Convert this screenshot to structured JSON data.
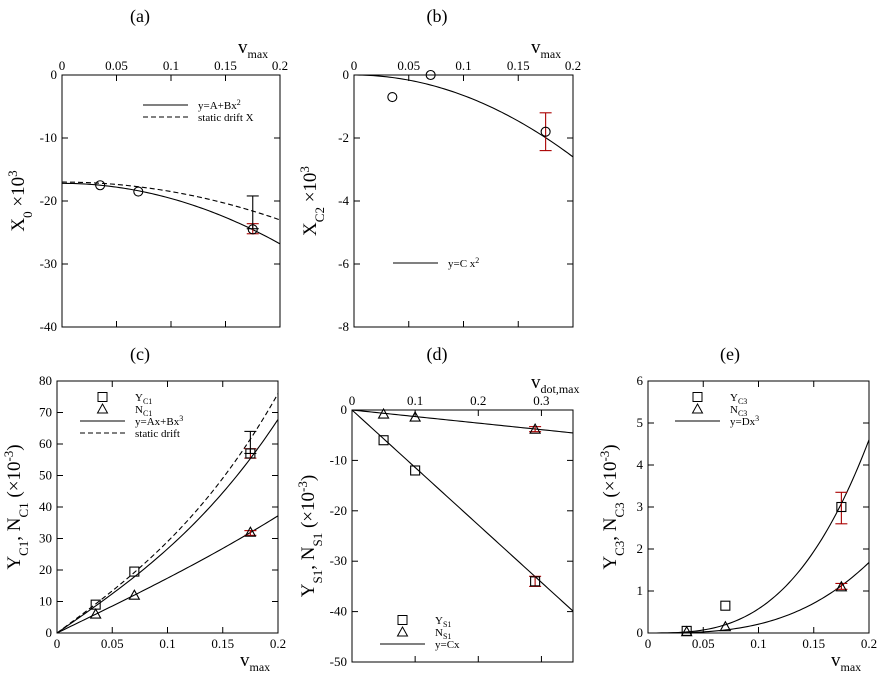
{
  "chart_data": [
    {
      "id": "a",
      "panel_label": "(a)",
      "type": "scatter",
      "xlabel_main": "v",
      "xlabel_sub": "max",
      "xaxis_position": "top",
      "ylabel_html": "X<tspan baseline-shift='sub' font-size='13'>0</tspan> ×10<tspan baseline-shift='super' font-size='13'>3</tspan>",
      "xlim": [
        0,
        0.2
      ],
      "ylim": [
        -40,
        0
      ],
      "xticks": [
        0,
        0.05,
        0.1,
        0.15,
        0.2
      ],
      "xtick_labels": [
        "0",
        "0.05",
        "0.1",
        "0.15",
        "0.2"
      ],
      "yticks": [
        0,
        -10,
        -20,
        -30,
        -40
      ],
      "ytick_labels": [
        "0",
        "-10",
        "-20",
        "-30",
        "-40"
      ],
      "points": [
        {
          "marker": "circle",
          "color": "#000000",
          "x": [
            0.035,
            0.07
          ],
          "y": [
            -17.5,
            -18.5
          ]
        },
        {
          "marker": "circle",
          "color": "#aa0000",
          "x": [
            0.175
          ],
          "y": [
            -24.5
          ]
        }
      ],
      "errorbars": [
        {
          "x": 0.175,
          "y": -24.4,
          "lo": -25.2,
          "hi": -23.6,
          "color": "#aa0000"
        },
        {
          "x": 0.175,
          "y": -24.4,
          "lo": -24.4,
          "hi": -19.2,
          "color": "#000000"
        }
      ],
      "curves": [
        {
          "kind": "poly",
          "coef": [
            -17.2,
            0,
            -240
          ],
          "xr": [
            0,
            0.2
          ],
          "dash": false
        },
        {
          "kind": "poly",
          "coef": [
            -17,
            0,
            -150
          ],
          "xr": [
            0,
            0.2
          ],
          "dash": true
        }
      ],
      "legend": [
        {
          "style": "line",
          "text": "y=A+Bx",
          "sup": "2"
        },
        {
          "style": "dash",
          "text": "static drift X"
        }
      ]
    },
    {
      "id": "b",
      "panel_label": "(b)",
      "type": "scatter",
      "xlabel_main": "v",
      "xlabel_sub": "max",
      "xaxis_position": "top",
      "ylabel_html": "X<tspan baseline-shift='sub' font-size='13'>C2</tspan> ×10<tspan baseline-shift='super' font-size='13'>3</tspan>",
      "xlim": [
        0,
        0.2
      ],
      "ylim": [
        -8,
        0
      ],
      "xticks": [
        0,
        0.05,
        0.1,
        0.15,
        0.2
      ],
      "xtick_labels": [
        "0",
        "0.05",
        "0.1",
        "0.15",
        "0.2"
      ],
      "yticks": [
        0,
        -2,
        -4,
        -6,
        -8
      ],
      "ytick_labels": [
        "0",
        "-2",
        "-4",
        "-6",
        "-8"
      ],
      "points": [
        {
          "marker": "circle",
          "color": "#000000",
          "x": [
            0.035,
            0.07
          ],
          "y": [
            -0.7,
            0
          ]
        },
        {
          "marker": "circle",
          "color": "#aa0000",
          "x": [
            0.175
          ],
          "y": [
            -1.8
          ]
        }
      ],
      "errorbars": [
        {
          "x": 0.175,
          "y": -1.8,
          "lo": -2.4,
          "hi": -1.2,
          "color": "#aa0000"
        }
      ],
      "curves": [
        {
          "kind": "poly",
          "coef": [
            0,
            0,
            -65
          ],
          "xr": [
            0,
            0.2
          ],
          "dash": false
        }
      ],
      "legend": [
        {
          "style": "line",
          "text": "y=C x",
          "sup": "2"
        }
      ]
    },
    {
      "id": "c",
      "panel_label": "(c)",
      "type": "scatter",
      "xlabel_main": "v",
      "xlabel_sub": "max",
      "xaxis_position": "bottom",
      "ylabel_html": "Y<tspan baseline-shift='sub' font-size='13'>C1</tspan>, N<tspan baseline-shift='sub' font-size='13'>C1</tspan> (×10<tspan baseline-shift='super' font-size='13'>-3</tspan>)",
      "xlim": [
        0,
        0.2
      ],
      "ylim": [
        0,
        80
      ],
      "xticks": [
        0,
        0.05,
        0.1,
        0.15,
        0.2
      ],
      "xtick_labels": [
        "0",
        "0.05",
        "0.1",
        "0.15",
        "0.2"
      ],
      "yticks": [
        0,
        10,
        20,
        30,
        40,
        50,
        60,
        70,
        80
      ],
      "ytick_labels": [
        "0",
        "10",
        "20",
        "30",
        "40",
        "50",
        "60",
        "70",
        "80"
      ],
      "points": [
        {
          "marker": "square",
          "color": "#000000",
          "x": [
            0.035,
            0.07
          ],
          "y": [
            9,
            19.5
          ]
        },
        {
          "marker": "square",
          "color": "#aa0000",
          "x": [
            0.175
          ],
          "y": [
            57
          ]
        },
        {
          "marker": "triangle",
          "color": "#000000",
          "x": [
            0.035,
            0.07
          ],
          "y": [
            6,
            12
          ]
        },
        {
          "marker": "triangle",
          "color": "#aa0000",
          "x": [
            0.175
          ],
          "y": [
            32
          ]
        }
      ],
      "errorbars": [
        {
          "x": 0.175,
          "y": 57,
          "lo": 55.5,
          "hi": 58.5,
          "color": "#aa0000"
        },
        {
          "x": 0.175,
          "y": 57,
          "lo": 57,
          "hi": 64,
          "color": "#000000"
        },
        {
          "x": 0.175,
          "y": 31.5,
          "lo": 31,
          "hi": 32.5,
          "color": "#aa0000"
        }
      ],
      "curves": [
        {
          "kind": "poly",
          "coef": [
            0,
            243,
            0,
            2400
          ],
          "xr": [
            0,
            0.2
          ],
          "dash": false
        },
        {
          "kind": "poly",
          "coef": [
            0,
            260,
            0,
            3000
          ],
          "xr": [
            0,
            0.2
          ],
          "dash": true
        },
        {
          "kind": "poly",
          "coef": [
            0,
            170,
            0,
            400
          ],
          "xr": [
            0,
            0.2
          ],
          "dash": false
        }
      ],
      "legend": [
        {
          "style": "square",
          "text": "Y",
          "sub": "C1"
        },
        {
          "style": "triangle",
          "text": "N",
          "sub": "C1"
        },
        {
          "style": "line",
          "text": "y=Ax+Bx",
          "sup": "3"
        },
        {
          "style": "dash",
          "text": "static drift"
        }
      ]
    },
    {
      "id": "d",
      "panel_label": "(d)",
      "type": "scatter",
      "xlabel_main": "v",
      "xlabel_sub": "dot,max",
      "xaxis_position": "top",
      "ylabel_html": "Y<tspan baseline-shift='sub' font-size='13'>S1</tspan>, N<tspan baseline-shift='sub' font-size='13'>S1</tspan> (×10<tspan baseline-shift='super' font-size='13'>-3</tspan>)",
      "xlim": [
        0,
        0.35
      ],
      "ylim": [
        -50,
        0
      ],
      "xticks": [
        0,
        0.1,
        0.2,
        0.3
      ],
      "xtick_labels": [
        "0",
        "0.1",
        "0.2",
        "0.3"
      ],
      "yticks": [
        0,
        -10,
        -20,
        -30,
        -40,
        -50
      ],
      "ytick_labels": [
        "0",
        "-10",
        "-20",
        "-30",
        "-40",
        "-50"
      ],
      "points": [
        {
          "marker": "square",
          "color": "#000000",
          "x": [
            0.05,
            0.1
          ],
          "y": [
            -6,
            -12
          ]
        },
        {
          "marker": "square",
          "color": "#aa0000",
          "x": [
            0.29
          ],
          "y": [
            -34
          ]
        },
        {
          "marker": "triangle",
          "color": "#000000",
          "x": [
            0.05,
            0.1
          ],
          "y": [
            -0.8,
            -1.4
          ]
        },
        {
          "marker": "triangle",
          "color": "#aa0000",
          "x": [
            0.29
          ],
          "y": [
            -3.8
          ]
        }
      ],
      "errorbars": [
        {
          "x": 0.29,
          "y": -34,
          "lo": -35,
          "hi": -33,
          "color": "#aa0000"
        },
        {
          "x": 0.29,
          "y": -3.8,
          "lo": -4.3,
          "hi": -3.3,
          "color": "#aa0000"
        }
      ],
      "curves": [
        {
          "kind": "poly",
          "coef": [
            0,
            -114
          ],
          "xr": [
            0,
            0.35
          ],
          "dash": false
        },
        {
          "kind": "poly",
          "coef": [
            0,
            -13
          ],
          "xr": [
            0,
            0.35
          ],
          "dash": false
        }
      ],
      "legend": [
        {
          "style": "square",
          "text": "Y",
          "sub": "S1"
        },
        {
          "style": "triangle",
          "text": "N",
          "sub": "S1"
        },
        {
          "style": "line",
          "text": "y=Cx"
        }
      ]
    },
    {
      "id": "e",
      "panel_label": "(e)",
      "type": "scatter",
      "xlabel_main": "v",
      "xlabel_sub": "max",
      "xaxis_position": "bottom",
      "ylabel_html": "Y<tspan baseline-shift='sub' font-size='13'>C3</tspan>, N<tspan baseline-shift='sub' font-size='13'>C3</tspan> (×10<tspan baseline-shift='super' font-size='13'>-3</tspan>)",
      "xlim": [
        0,
        0.2
      ],
      "ylim": [
        0,
        6
      ],
      "xticks": [
        0,
        0.05,
        0.1,
        0.15,
        0.2
      ],
      "xtick_labels": [
        "0",
        "0.05",
        "0.1",
        "0.15",
        "0.2"
      ],
      "yticks": [
        0,
        1,
        2,
        3,
        4,
        5,
        6
      ],
      "ytick_labels": [
        "0",
        "1",
        "2",
        "3",
        "4",
        "5",
        "6"
      ],
      "points": [
        {
          "marker": "square",
          "color": "#000000",
          "x": [
            0.035,
            0.07
          ],
          "y": [
            0.05,
            0.65
          ]
        },
        {
          "marker": "square",
          "color": "#aa0000",
          "x": [
            0.175
          ],
          "y": [
            3
          ]
        },
        {
          "marker": "triangle",
          "color": "#000000",
          "x": [
            0.035,
            0.07
          ],
          "y": [
            0.03,
            0.15
          ]
        },
        {
          "marker": "triangle",
          "color": "#aa0000",
          "x": [
            0.175
          ],
          "y": [
            1.1
          ]
        }
      ],
      "errorbars": [
        {
          "x": 0.175,
          "y": 3,
          "lo": 2.6,
          "hi": 3.35,
          "color": "#aa0000"
        },
        {
          "x": 0.175,
          "y": 1.1,
          "lo": 1.04,
          "hi": 1.18,
          "color": "#aa0000"
        }
      ],
      "curves": [
        {
          "kind": "poly",
          "coef": [
            0,
            0,
            0,
            575
          ],
          "xr": [
            0,
            0.2
          ],
          "dash": false
        },
        {
          "kind": "poly",
          "coef": [
            0,
            0,
            0,
            210
          ],
          "xr": [
            0,
            0.2
          ],
          "dash": false
        }
      ],
      "legend": [
        {
          "style": "square",
          "text": "Y",
          "sub": "C3"
        },
        {
          "style": "triangle",
          "text": "N",
          "sub": "C3"
        },
        {
          "style": "line",
          "text": "y=Dx",
          "sup": "3"
        }
      ]
    }
  ]
}
